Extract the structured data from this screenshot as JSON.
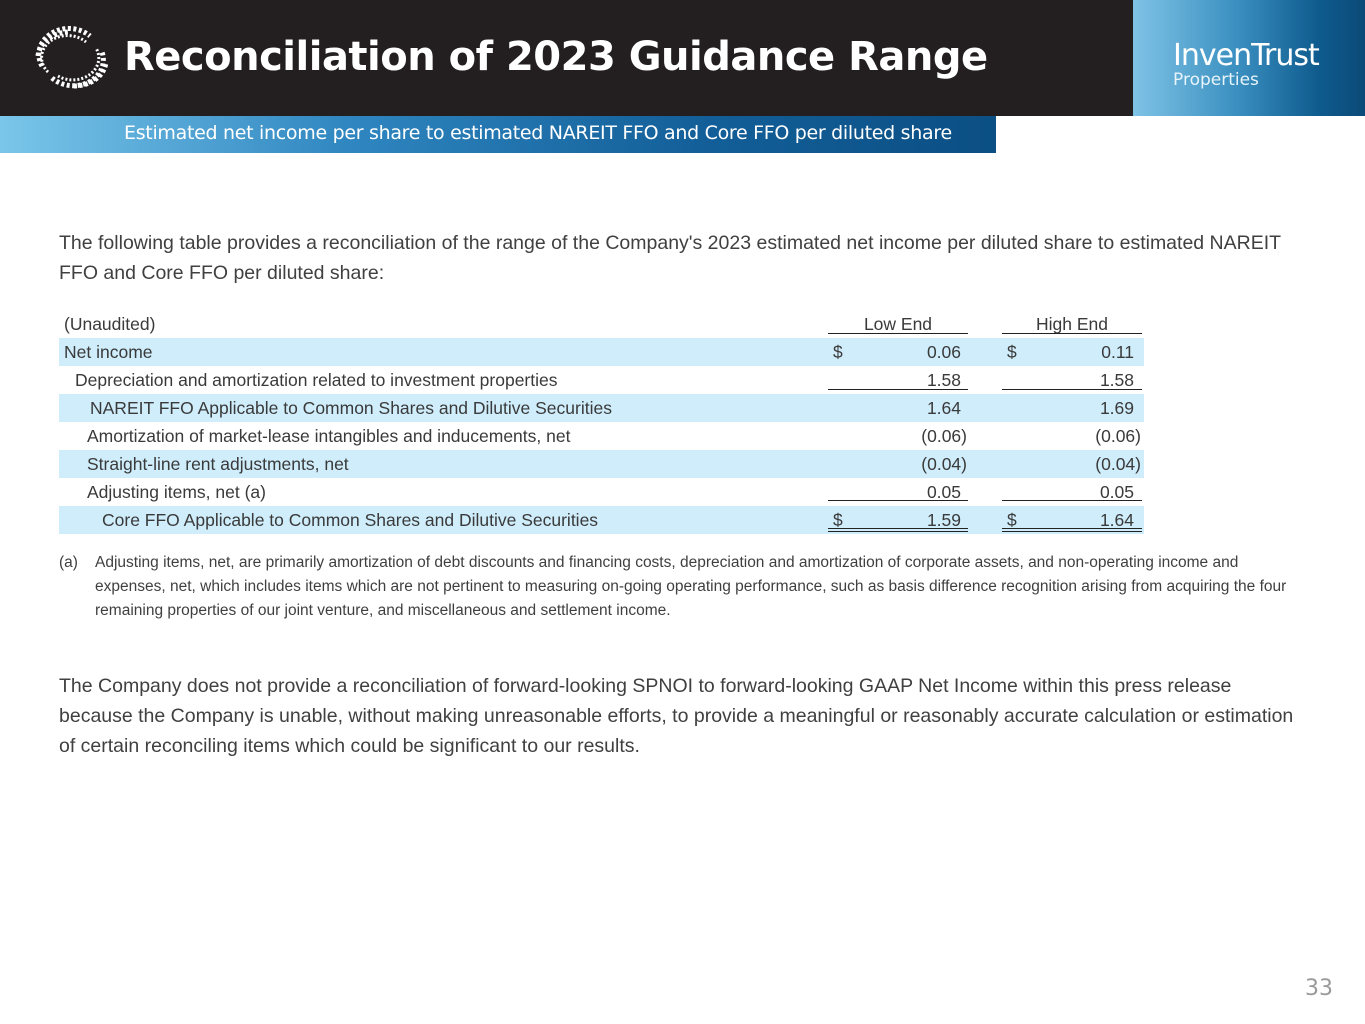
{
  "header": {
    "title": "Reconciliation of 2023 Guidance Range",
    "subtitle": "Estimated net income per share to estimated NAREIT FFO and Core FFO per diluted share"
  },
  "brand": {
    "name": "InvenTrust",
    "sub": "Properties"
  },
  "intro": "The following table provides a reconciliation of the range of the Company's 2023 estimated net income per diluted share to estimated NAREIT FFO and Core FFO per diluted share:",
  "table": {
    "unaudited_label": "(Unaudited)",
    "col_low": "Low End",
    "col_high": "High End",
    "rows": [
      {
        "label": "Net income",
        "cur": "$",
        "low": "0.06",
        "high": "0.11"
      },
      {
        "label": "Depreciation and amortization related to investment properties",
        "cur": "",
        "low": "1.58",
        "high": "1.58"
      },
      {
        "label": "NAREIT FFO Applicable to Common Shares and Dilutive Securities",
        "cur": "",
        "low": "1.64",
        "high": "1.69"
      },
      {
        "label": "Amortization of market-lease intangibles and inducements, net",
        "cur": "",
        "low": "(0.06)",
        "high": "(0.06)"
      },
      {
        "label": "Straight-line rent adjustments, net",
        "cur": "",
        "low": "(0.04)",
        "high": "(0.04)"
      },
      {
        "label": "Adjusting items, net (a)",
        "cur": "",
        "low": "0.05",
        "high": "0.05"
      },
      {
        "label": "Core FFO Applicable to Common Shares and Dilutive Securities",
        "cur": "$",
        "low": "1.59",
        "high": "1.64"
      }
    ]
  },
  "footnote": {
    "mark": "(a)",
    "text": "Adjusting items, net, are primarily amortization of debt discounts and financing costs, depreciation and amortization of corporate assets, and non-operating income and expenses, net, which includes items which are not pertinent to measuring on-going operating performance, such as basis difference recognition arising from acquiring the four remaining properties of our joint venture, and miscellaneous and settlement income."
  },
  "closing": "The Company does not provide a reconciliation of forward-looking SPNOI to forward-looking GAAP Net Income within this press release because the Company is unable, without making unreasonable efforts, to provide a meaningful or reasonably accurate calculation or estimation of certain reconciling items which could be significant to our results.",
  "page_number": "33",
  "colors": {
    "header_bg": "#231f20",
    "row_shade": "#cfedfb",
    "accent": "#135f99"
  },
  "icons": {
    "logo": "globe-dots-icon"
  }
}
